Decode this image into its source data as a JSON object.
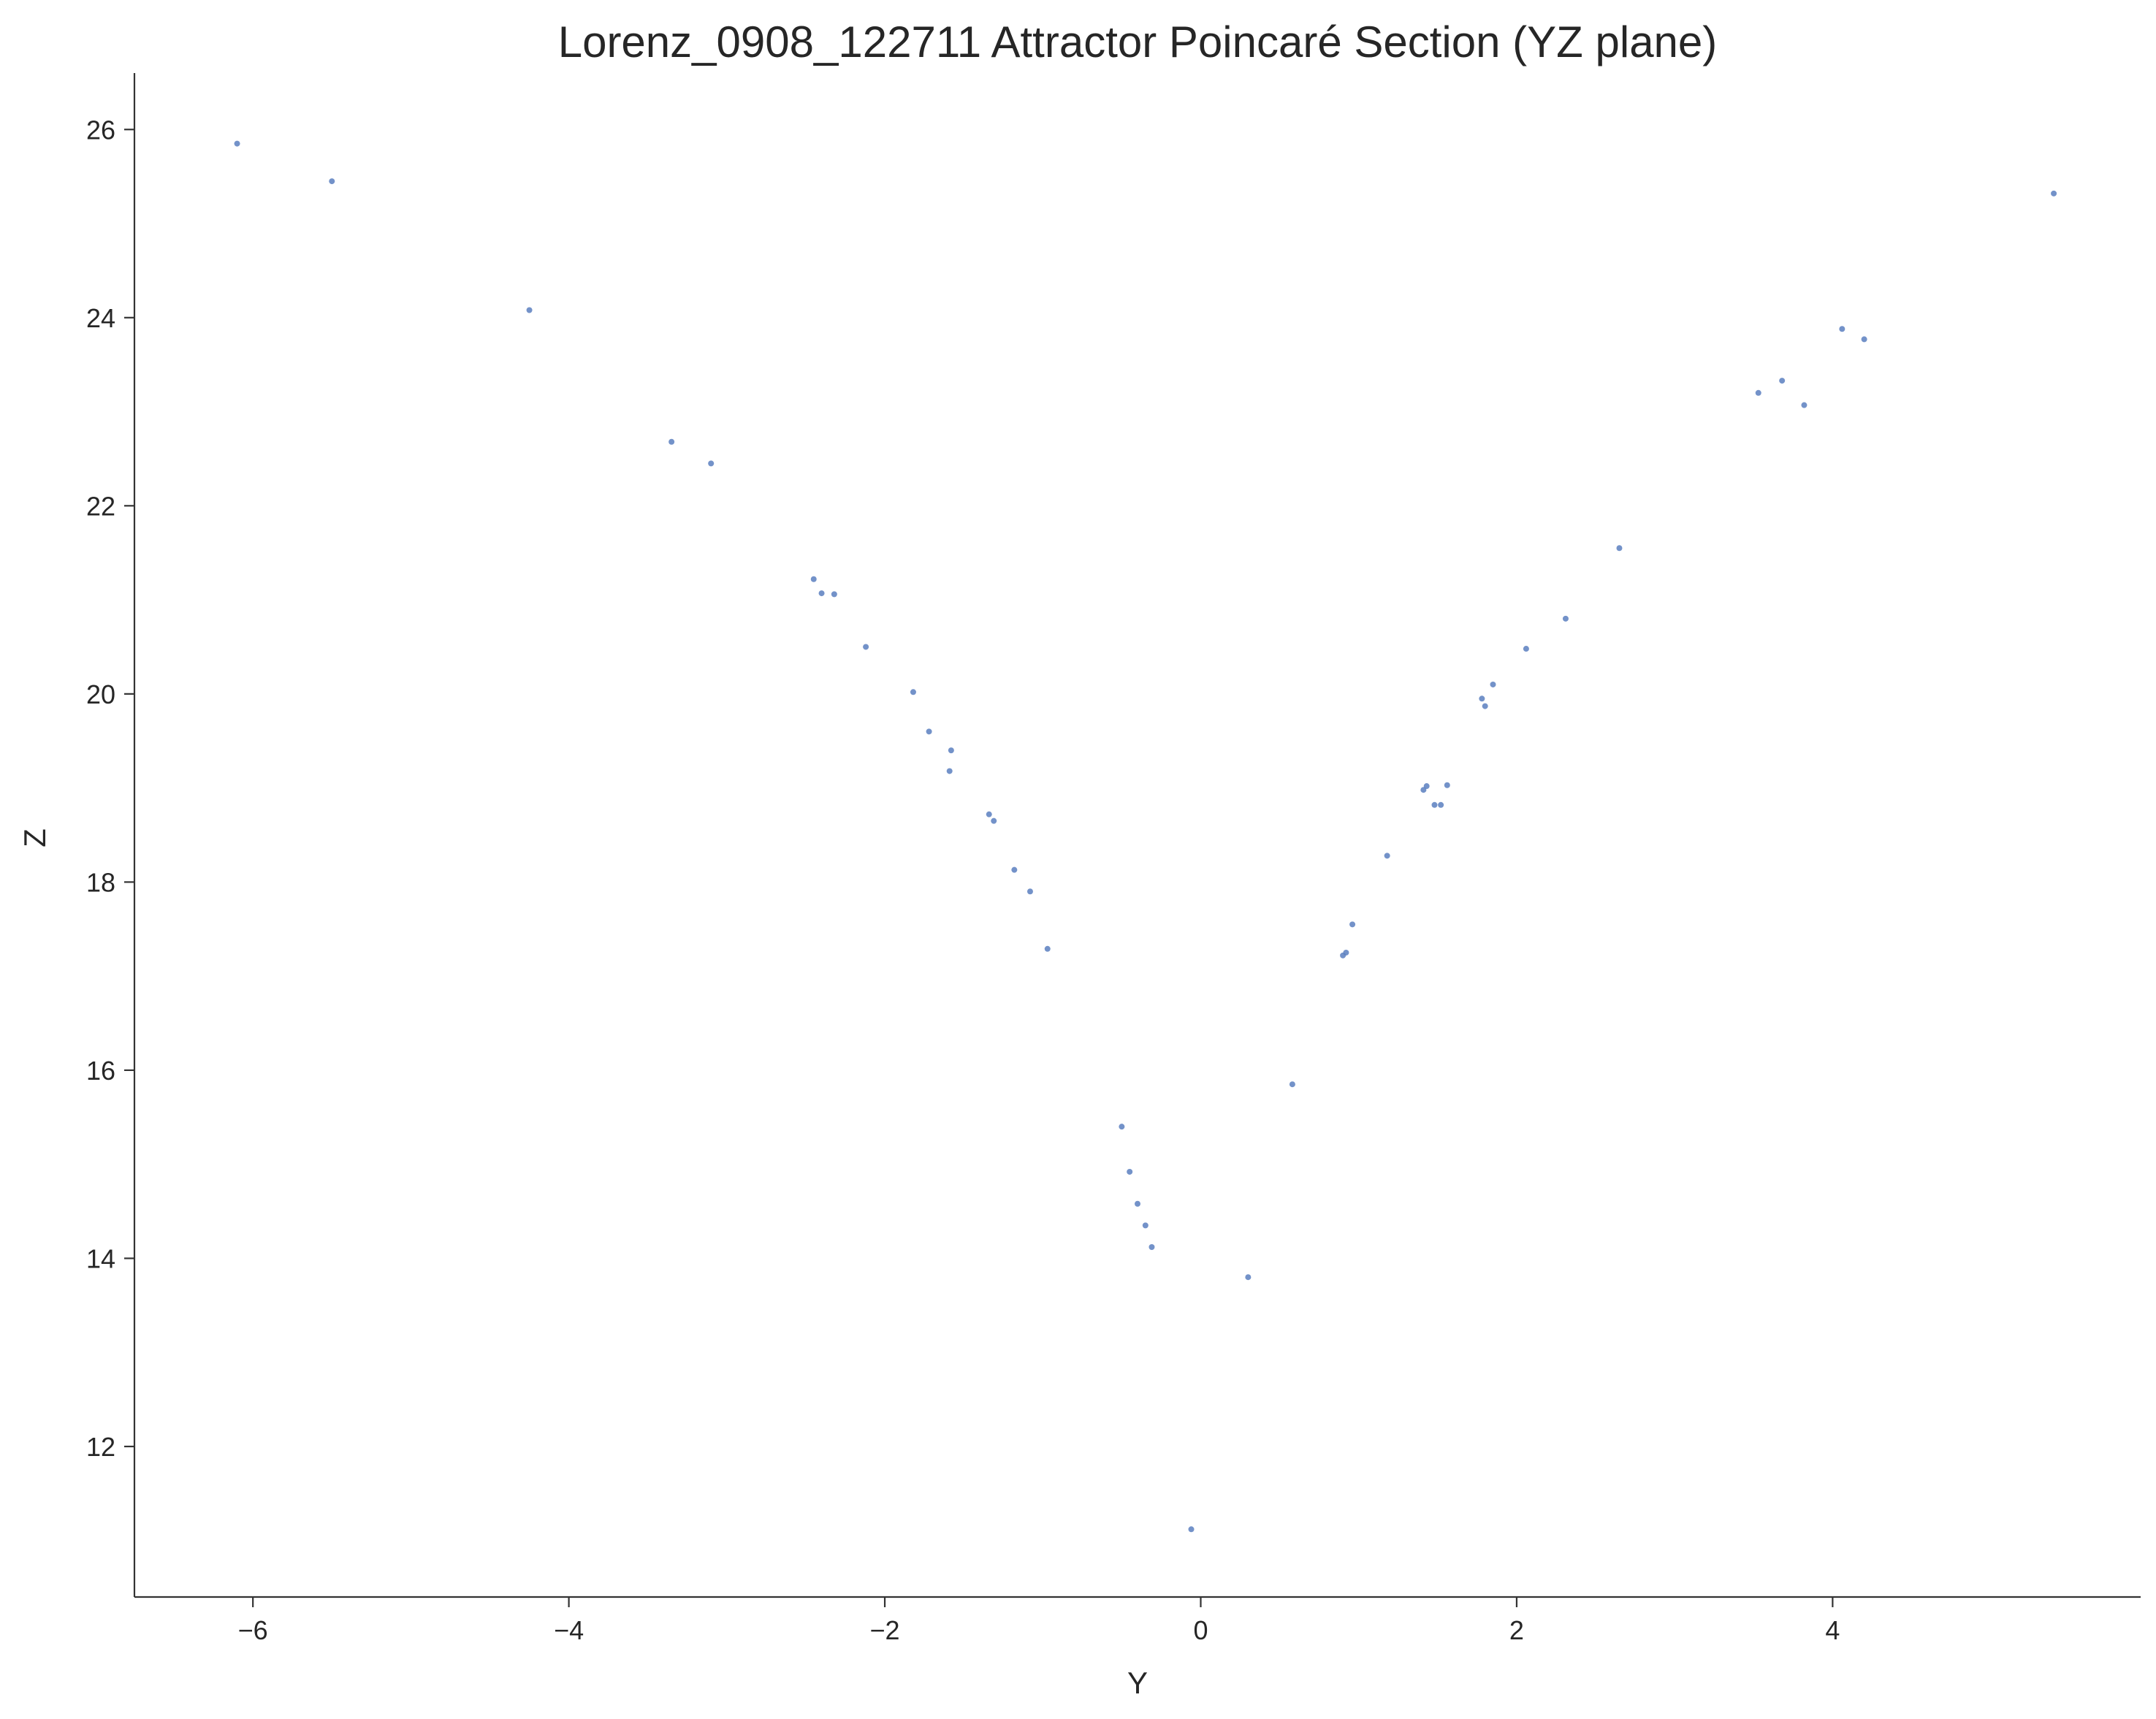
{
  "chart_data": {
    "type": "scatter",
    "title": "Lorenz_0908_122711 Attractor Poincaré Section (YZ plane)",
    "xlabel": "Y",
    "ylabel": "Z",
    "xlim": [
      -6.75,
      5.95
    ],
    "ylim": [
      10.4,
      26.6
    ],
    "xticks": [
      -6,
      -4,
      -2,
      0,
      2,
      4
    ],
    "xtick_labels": [
      "−6",
      "−4",
      "−2",
      "0",
      "2",
      "4"
    ],
    "yticks": [
      12,
      14,
      16,
      18,
      20,
      22,
      24,
      26
    ],
    "ytick_labels": [
      "12",
      "14",
      "16",
      "18",
      "20",
      "22",
      "24",
      "26"
    ],
    "grid": false,
    "marker_color": "#5a7fbf",
    "series": [
      {
        "points": [
          [
            -6.1,
            25.85
          ],
          [
            -5.5,
            25.45
          ],
          [
            -4.25,
            24.08
          ],
          [
            -3.35,
            22.68
          ],
          [
            -3.1,
            22.45
          ],
          [
            -2.45,
            21.22
          ],
          [
            -2.4,
            21.07
          ],
          [
            -2.32,
            21.06
          ],
          [
            -2.12,
            20.5
          ],
          [
            -1.82,
            20.02
          ],
          [
            -1.72,
            19.6
          ],
          [
            -1.58,
            19.4
          ],
          [
            -1.59,
            19.18
          ],
          [
            -1.34,
            18.72
          ],
          [
            -1.31,
            18.65
          ],
          [
            -1.18,
            18.13
          ],
          [
            -1.08,
            17.9
          ],
          [
            -0.97,
            17.29
          ],
          [
            -0.5,
            15.4
          ],
          [
            -0.45,
            14.92
          ],
          [
            -0.4,
            14.58
          ],
          [
            -0.35,
            14.35
          ],
          [
            -0.31,
            14.12
          ],
          [
            -0.06,
            11.12
          ],
          [
            0.3,
            13.8
          ],
          [
            0.58,
            15.85
          ],
          [
            0.9,
            17.22
          ],
          [
            0.92,
            17.25
          ],
          [
            0.96,
            17.55
          ],
          [
            1.18,
            18.28
          ],
          [
            1.41,
            18.98
          ],
          [
            1.43,
            19.02
          ],
          [
            1.48,
            18.82
          ],
          [
            1.52,
            18.82
          ],
          [
            1.56,
            19.03
          ],
          [
            1.78,
            19.95
          ],
          [
            1.8,
            19.87
          ],
          [
            1.85,
            20.1
          ],
          [
            2.06,
            20.48
          ],
          [
            2.31,
            20.8
          ],
          [
            2.65,
            21.55
          ],
          [
            3.53,
            23.2
          ],
          [
            3.68,
            23.33
          ],
          [
            3.82,
            23.07
          ],
          [
            4.06,
            23.88
          ],
          [
            4.2,
            23.77
          ],
          [
            5.4,
            25.32
          ]
        ]
      }
    ]
  }
}
